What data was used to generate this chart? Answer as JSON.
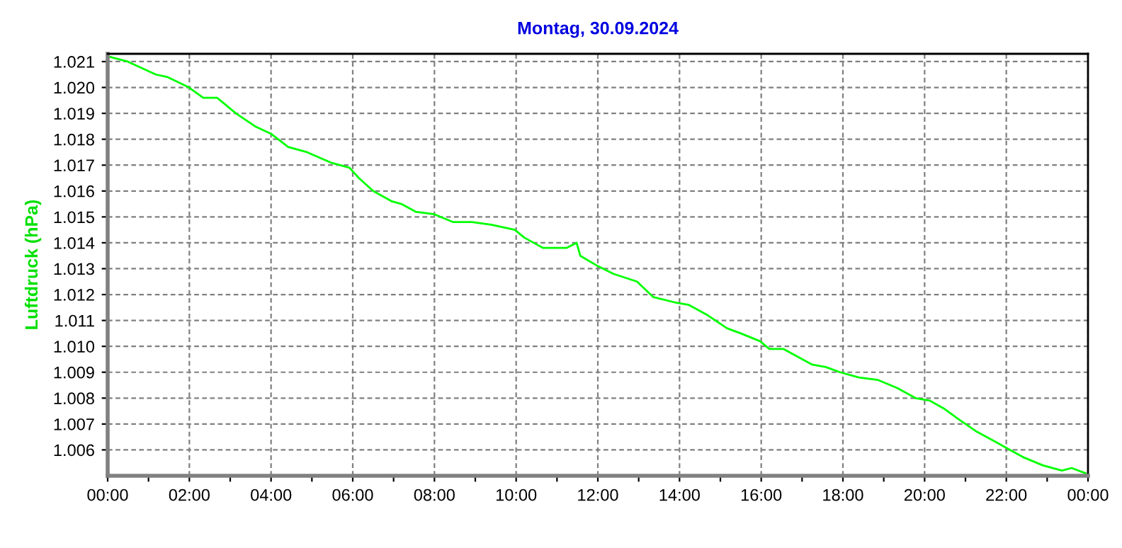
{
  "chart_data": {
    "type": "line",
    "title": "Montag, 30.09.2024",
    "ylabel": "Luftdruck (hPa)",
    "x": [
      0,
      0.49,
      1.18,
      1.47,
      1.99,
      2.34,
      2.68,
      3.14,
      3.61,
      4.01,
      4.42,
      4.88,
      5.46,
      5.92,
      6.15,
      6.5,
      6.96,
      7.19,
      7.54,
      8.0,
      8.46,
      8.92,
      9.39,
      9.97,
      10.2,
      10.66,
      10.88,
      11.23,
      11.48,
      11.57,
      12.0,
      12.38,
      12.96,
      13.36,
      13.88,
      14.23,
      14.69,
      15.16,
      15.5,
      15.97,
      16.2,
      16.54,
      16.89,
      17.24,
      17.58,
      17.93,
      18.39,
      18.86,
      19.32,
      19.78,
      20.13,
      20.47,
      20.82,
      21.28,
      21.75,
      22.09,
      22.44,
      22.9,
      23.36,
      23.6,
      23.94
    ],
    "series": [
      {
        "color": "#00ff00",
        "values": [
          1.0212,
          1.021,
          1.0205,
          1.0204,
          1.02,
          1.0196,
          1.0196,
          1.019,
          1.0185,
          1.0182,
          1.0177,
          1.0175,
          1.0171,
          1.0169,
          1.0165,
          1.016,
          1.0156,
          1.0155,
          1.0152,
          1.0151,
          1.0148,
          1.0148,
          1.0147,
          1.0145,
          1.0142,
          1.0138,
          1.0138,
          1.0138,
          1.014,
          1.0135,
          1.0131,
          1.0128,
          1.0125,
          1.0119,
          1.0117,
          1.0116,
          1.0112,
          1.0107,
          1.0105,
          1.0102,
          1.0099,
          1.0099,
          1.0096,
          1.0093,
          1.0092,
          1.009,
          1.0088,
          1.0087,
          1.0084,
          1.008,
          1.0079,
          1.0076,
          1.0072,
          1.0067,
          1.0063,
          1.006,
          1.0057,
          1.0054,
          1.0052,
          1.0053,
          1.0051
        ]
      }
    ],
    "xlim": [
      0,
      24
    ],
    "xticks": [
      {
        "value": 0,
        "label": "00:00"
      },
      {
        "value": 1,
        "label": null
      },
      {
        "value": 2,
        "label": "02:00"
      },
      {
        "value": 3,
        "label": null
      },
      {
        "value": 4,
        "label": "04:00"
      },
      {
        "value": 5,
        "label": null
      },
      {
        "value": 6,
        "label": "06:00"
      },
      {
        "value": 7,
        "label": null
      },
      {
        "value": 8,
        "label": "08:00"
      },
      {
        "value": 9,
        "label": null
      },
      {
        "value": 10,
        "label": "10:00"
      },
      {
        "value": 11,
        "label": null
      },
      {
        "value": 12,
        "label": "12:00"
      },
      {
        "value": 13,
        "label": null
      },
      {
        "value": 14,
        "label": "14:00"
      },
      {
        "value": 15,
        "label": null
      },
      {
        "value": 16,
        "label": "16:00"
      },
      {
        "value": 17,
        "label": null
      },
      {
        "value": 18,
        "label": "18:00"
      },
      {
        "value": 19,
        "label": null
      },
      {
        "value": 20,
        "label": "20:00"
      },
      {
        "value": 21,
        "label": null
      },
      {
        "value": 22,
        "label": "22:00"
      },
      {
        "value": 23,
        "label": null
      },
      {
        "value": 24,
        "label": "00:00"
      }
    ],
    "ylim": [
      1.005,
      1.0213
    ],
    "yticks": [
      {
        "value": 1.006,
        "label": "1.006"
      },
      {
        "value": 1.007,
        "label": "1.007"
      },
      {
        "value": 1.008,
        "label": "1.008"
      },
      {
        "value": 1.009,
        "label": "1.009"
      },
      {
        "value": 1.01,
        "label": "1.010"
      },
      {
        "value": 1.011,
        "label": "1.011"
      },
      {
        "value": 1.012,
        "label": "1.012"
      },
      {
        "value": 1.013,
        "label": "1.013"
      },
      {
        "value": 1.014,
        "label": "1.014"
      },
      {
        "value": 1.015,
        "label": "1.015"
      },
      {
        "value": 1.016,
        "label": "1.016"
      },
      {
        "value": 1.017,
        "label": "1.017"
      },
      {
        "value": 1.018,
        "label": "1.018"
      },
      {
        "value": 1.019,
        "label": "1.019"
      },
      {
        "value": 1.02,
        "label": "1.020"
      },
      {
        "value": 1.021,
        "label": "1.021"
      }
    ],
    "grid": true,
    "line_style": "solid",
    "marker": "none"
  }
}
